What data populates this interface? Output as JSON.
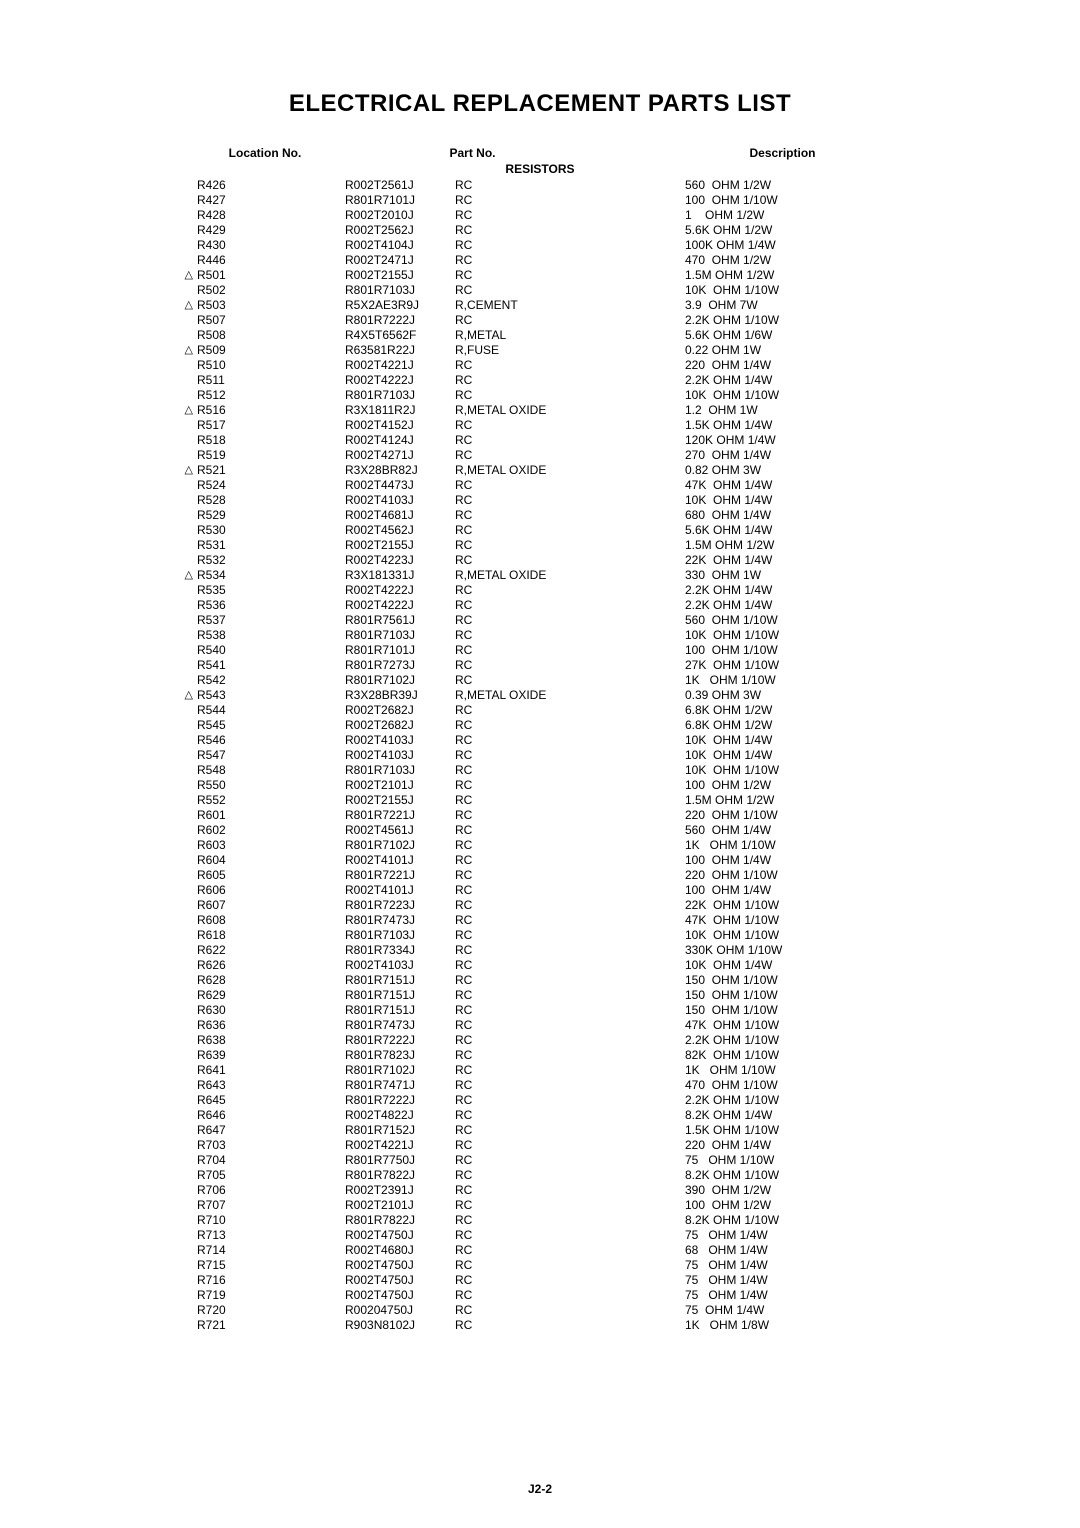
{
  "title": "ELECTRICAL REPLACEMENT PARTS LIST",
  "headers": {
    "location": "Location No.",
    "part": "Part No.",
    "description": "Description"
  },
  "section": "RESISTORS",
  "footer": "J2-2",
  "symbols": {
    "warn": "△"
  },
  "rows": [
    {
      "sym": "",
      "loc": "R426",
      "part": "R002T2561J",
      "type": "RC",
      "val": "560  OHM 1/2W"
    },
    {
      "sym": "",
      "loc": "R427",
      "part": "R801R7101J",
      "type": "RC",
      "val": "100  OHM 1/10W"
    },
    {
      "sym": "",
      "loc": "R428",
      "part": "R002T2010J",
      "type": "RC",
      "val": "1    OHM 1/2W"
    },
    {
      "sym": "",
      "loc": "R429",
      "part": "R002T2562J",
      "type": "RC",
      "val": "5.6K OHM 1/2W"
    },
    {
      "sym": "",
      "loc": "R430",
      "part": "R002T4104J",
      "type": "RC",
      "val": "100K OHM 1/4W"
    },
    {
      "sym": "",
      "loc": "R446",
      "part": "R002T2471J",
      "type": "RC",
      "val": "470  OHM 1/2W"
    },
    {
      "sym": "warn",
      "loc": "R501",
      "part": "R002T2155J",
      "type": "RC",
      "val": "1.5M OHM 1/2W"
    },
    {
      "sym": "",
      "loc": "R502",
      "part": "R801R7103J",
      "type": "RC",
      "val": "10K  OHM 1/10W"
    },
    {
      "sym": "warn",
      "loc": "R503",
      "part": "R5X2AE3R9J",
      "type": "R,CEMENT",
      "val": "3.9  OHM 7W"
    },
    {
      "sym": "",
      "loc": "R507",
      "part": "R801R7222J",
      "type": "RC",
      "val": "2.2K OHM 1/10W"
    },
    {
      "sym": "",
      "loc": "R508",
      "part": "R4X5T6562F",
      "type": "R,METAL",
      "val": "5.6K OHM 1/6W"
    },
    {
      "sym": "warn",
      "loc": "R509",
      "part": "R63581R22J",
      "type": "R,FUSE",
      "val": "0.22 OHM 1W"
    },
    {
      "sym": "",
      "loc": "R510",
      "part": "R002T4221J",
      "type": "RC",
      "val": "220  OHM 1/4W"
    },
    {
      "sym": "",
      "loc": "R511",
      "part": "R002T4222J",
      "type": "RC",
      "val": "2.2K OHM 1/4W"
    },
    {
      "sym": "",
      "loc": "R512",
      "part": "R801R7103J",
      "type": "RC",
      "val": "10K  OHM 1/10W"
    },
    {
      "sym": "warn",
      "loc": "R516",
      "part": "R3X1811R2J",
      "type": "R,METAL OXIDE",
      "val": "1.2  OHM 1W"
    },
    {
      "sym": "",
      "loc": "R517",
      "part": "R002T4152J",
      "type": "RC",
      "val": "1.5K OHM 1/4W"
    },
    {
      "sym": "",
      "loc": "R518",
      "part": "R002T4124J",
      "type": "RC",
      "val": "120K OHM 1/4W"
    },
    {
      "sym": "",
      "loc": "R519",
      "part": "R002T4271J",
      "type": "RC",
      "val": "270  OHM 1/4W"
    },
    {
      "sym": "warn",
      "loc": "R521",
      "part": "R3X28BR82J",
      "type": "R,METAL OXIDE",
      "val": "0.82 OHM 3W"
    },
    {
      "sym": "",
      "loc": "R524",
      "part": "R002T4473J",
      "type": "RC",
      "val": "47K  OHM 1/4W"
    },
    {
      "sym": "",
      "loc": "R528",
      "part": "R002T4103J",
      "type": "RC",
      "val": "10K  OHM 1/4W"
    },
    {
      "sym": "",
      "loc": "R529",
      "part": "R002T4681J",
      "type": "RC",
      "val": "680  OHM 1/4W"
    },
    {
      "sym": "",
      "loc": "R530",
      "part": "R002T4562J",
      "type": "RC",
      "val": "5.6K OHM 1/4W"
    },
    {
      "sym": "",
      "loc": "R531",
      "part": "R002T2155J",
      "type": "RC",
      "val": "1.5M OHM 1/2W"
    },
    {
      "sym": "",
      "loc": "R532",
      "part": "R002T4223J",
      "type": "RC",
      "val": "22K  OHM 1/4W"
    },
    {
      "sym": "warn",
      "loc": "R534",
      "part": "R3X181331J",
      "type": "R,METAL OXIDE",
      "val": "330  OHM 1W"
    },
    {
      "sym": "",
      "loc": "R535",
      "part": "R002T4222J",
      "type": "RC",
      "val": "2.2K OHM 1/4W"
    },
    {
      "sym": "",
      "loc": "R536",
      "part": "R002T4222J",
      "type": "RC",
      "val": "2.2K OHM 1/4W"
    },
    {
      "sym": "",
      "loc": "R537",
      "part": "R801R7561J",
      "type": "RC",
      "val": "560  OHM 1/10W"
    },
    {
      "sym": "",
      "loc": "R538",
      "part": "R801R7103J",
      "type": "RC",
      "val": "10K  OHM 1/10W"
    },
    {
      "sym": "",
      "loc": "R540",
      "part": "R801R7101J",
      "type": "RC",
      "val": "100  OHM 1/10W"
    },
    {
      "sym": "",
      "loc": "R541",
      "part": "R801R7273J",
      "type": "RC",
      "val": "27K  OHM 1/10W"
    },
    {
      "sym": "",
      "loc": "R542",
      "part": "R801R7102J",
      "type": "RC",
      "val": "1K   OHM 1/10W"
    },
    {
      "sym": "warn",
      "loc": "R543",
      "part": "R3X28BR39J",
      "type": "R,METAL OXIDE",
      "val": "0.39 OHM 3W"
    },
    {
      "sym": "",
      "loc": "R544",
      "part": "R002T2682J",
      "type": "RC",
      "val": "6.8K OHM 1/2W"
    },
    {
      "sym": "",
      "loc": "R545",
      "part": "R002T2682J",
      "type": "RC",
      "val": "6.8K OHM 1/2W"
    },
    {
      "sym": "",
      "loc": "R546",
      "part": "R002T4103J",
      "type": "RC",
      "val": "10K  OHM 1/4W"
    },
    {
      "sym": "",
      "loc": "R547",
      "part": "R002T4103J",
      "type": "RC",
      "val": "10K  OHM 1/4W"
    },
    {
      "sym": "",
      "loc": "R548",
      "part": "R801R7103J",
      "type": "RC",
      "val": "10K  OHM 1/10W"
    },
    {
      "sym": "",
      "loc": "R550",
      "part": "R002T2101J",
      "type": "RC",
      "val": "100  OHM 1/2W"
    },
    {
      "sym": "",
      "loc": "R552",
      "part": "R002T2155J",
      "type": "RC",
      "val": "1.5M OHM 1/2W"
    },
    {
      "sym": "",
      "loc": "R601",
      "part": "R801R7221J",
      "type": "RC",
      "val": "220  OHM 1/10W"
    },
    {
      "sym": "",
      "loc": "R602",
      "part": "R002T4561J",
      "type": "RC",
      "val": "560  OHM 1/4W"
    },
    {
      "sym": "",
      "loc": "R603",
      "part": "R801R7102J",
      "type": "RC",
      "val": "1K   OHM 1/10W"
    },
    {
      "sym": "",
      "loc": "R604",
      "part": "R002T4101J",
      "type": "RC",
      "val": "100  OHM 1/4W"
    },
    {
      "sym": "",
      "loc": "R605",
      "part": "R801R7221J",
      "type": "RC",
      "val": "220  OHM 1/10W"
    },
    {
      "sym": "",
      "loc": "R606",
      "part": "R002T4101J",
      "type": "RC",
      "val": "100  OHM 1/4W"
    },
    {
      "sym": "",
      "loc": "R607",
      "part": "R801R7223J",
      "type": "RC",
      "val": "22K  OHM 1/10W"
    },
    {
      "sym": "",
      "loc": "R608",
      "part": "R801R7473J",
      "type": "RC",
      "val": "47K  OHM 1/10W"
    },
    {
      "sym": "",
      "loc": "R618",
      "part": "R801R7103J",
      "type": "RC",
      "val": "10K  OHM 1/10W"
    },
    {
      "sym": "",
      "loc": "R622",
      "part": "R801R7334J",
      "type": "RC",
      "val": "330K OHM 1/10W"
    },
    {
      "sym": "",
      "loc": "R626",
      "part": "R002T4103J",
      "type": "RC",
      "val": "10K  OHM 1/4W"
    },
    {
      "sym": "",
      "loc": "R628",
      "part": "R801R7151J",
      "type": "RC",
      "val": "150  OHM 1/10W"
    },
    {
      "sym": "",
      "loc": "R629",
      "part": "R801R7151J",
      "type": "RC",
      "val": "150  OHM 1/10W"
    },
    {
      "sym": "",
      "loc": "R630",
      "part": "R801R7151J",
      "type": "RC",
      "val": "150  OHM 1/10W"
    },
    {
      "sym": "",
      "loc": "R636",
      "part": "R801R7473J",
      "type": "RC",
      "val": "47K  OHM 1/10W"
    },
    {
      "sym": "",
      "loc": "R638",
      "part": "R801R7222J",
      "type": "RC",
      "val": "2.2K OHM 1/10W"
    },
    {
      "sym": "",
      "loc": "R639",
      "part": "R801R7823J",
      "type": "RC",
      "val": "82K  OHM 1/10W"
    },
    {
      "sym": "",
      "loc": "R641",
      "part": "R801R7102J",
      "type": "RC",
      "val": "1K   OHM 1/10W"
    },
    {
      "sym": "",
      "loc": "R643",
      "part": "R801R7471J",
      "type": "RC",
      "val": "470  OHM 1/10W"
    },
    {
      "sym": "",
      "loc": "R645",
      "part": "R801R7222J",
      "type": "RC",
      "val": "2.2K OHM 1/10W"
    },
    {
      "sym": "",
      "loc": "R646",
      "part": "R002T4822J",
      "type": "RC",
      "val": "8.2K OHM 1/4W"
    },
    {
      "sym": "",
      "loc": "R647",
      "part": "R801R7152J",
      "type": "RC",
      "val": "1.5K OHM 1/10W"
    },
    {
      "sym": "",
      "loc": "R703",
      "part": "R002T4221J",
      "type": "RC",
      "val": "220  OHM 1/4W"
    },
    {
      "sym": "",
      "loc": "R704",
      "part": "R801R7750J",
      "type": "RC",
      "val": "75   OHM 1/10W"
    },
    {
      "sym": "",
      "loc": "R705",
      "part": "R801R7822J",
      "type": "RC",
      "val": "8.2K OHM 1/10W"
    },
    {
      "sym": "",
      "loc": "R706",
      "part": "R002T2391J",
      "type": "RC",
      "val": "390  OHM 1/2W"
    },
    {
      "sym": "",
      "loc": "R707",
      "part": "R002T2101J",
      "type": "RC",
      "val": "100  OHM 1/2W"
    },
    {
      "sym": "",
      "loc": "R710",
      "part": "R801R7822J",
      "type": "RC",
      "val": "8.2K OHM 1/10W"
    },
    {
      "sym": "",
      "loc": "R713",
      "part": "R002T4750J",
      "type": "RC",
      "val": "75   OHM 1/4W"
    },
    {
      "sym": "",
      "loc": "R714",
      "part": "R002T4680J",
      "type": "RC",
      "val": "68   OHM 1/4W"
    },
    {
      "sym": "",
      "loc": "R715",
      "part": "R002T4750J",
      "type": "RC",
      "val": "75   OHM 1/4W"
    },
    {
      "sym": "",
      "loc": "R716",
      "part": "R002T4750J",
      "type": "RC",
      "val": "75   OHM 1/4W"
    },
    {
      "sym": "",
      "loc": "R719",
      "part": "R002T4750J",
      "type": "RC",
      "val": "75   OHM 1/4W"
    },
    {
      "sym": "",
      "loc": "R720",
      "part": "R00204750J",
      "type": "RC",
      "val": "75  OHM 1/4W"
    },
    {
      "sym": "",
      "loc": "R721",
      "part": "R903N8102J",
      "type": "RC",
      "val": "1K   OHM 1/8W"
    }
  ]
}
